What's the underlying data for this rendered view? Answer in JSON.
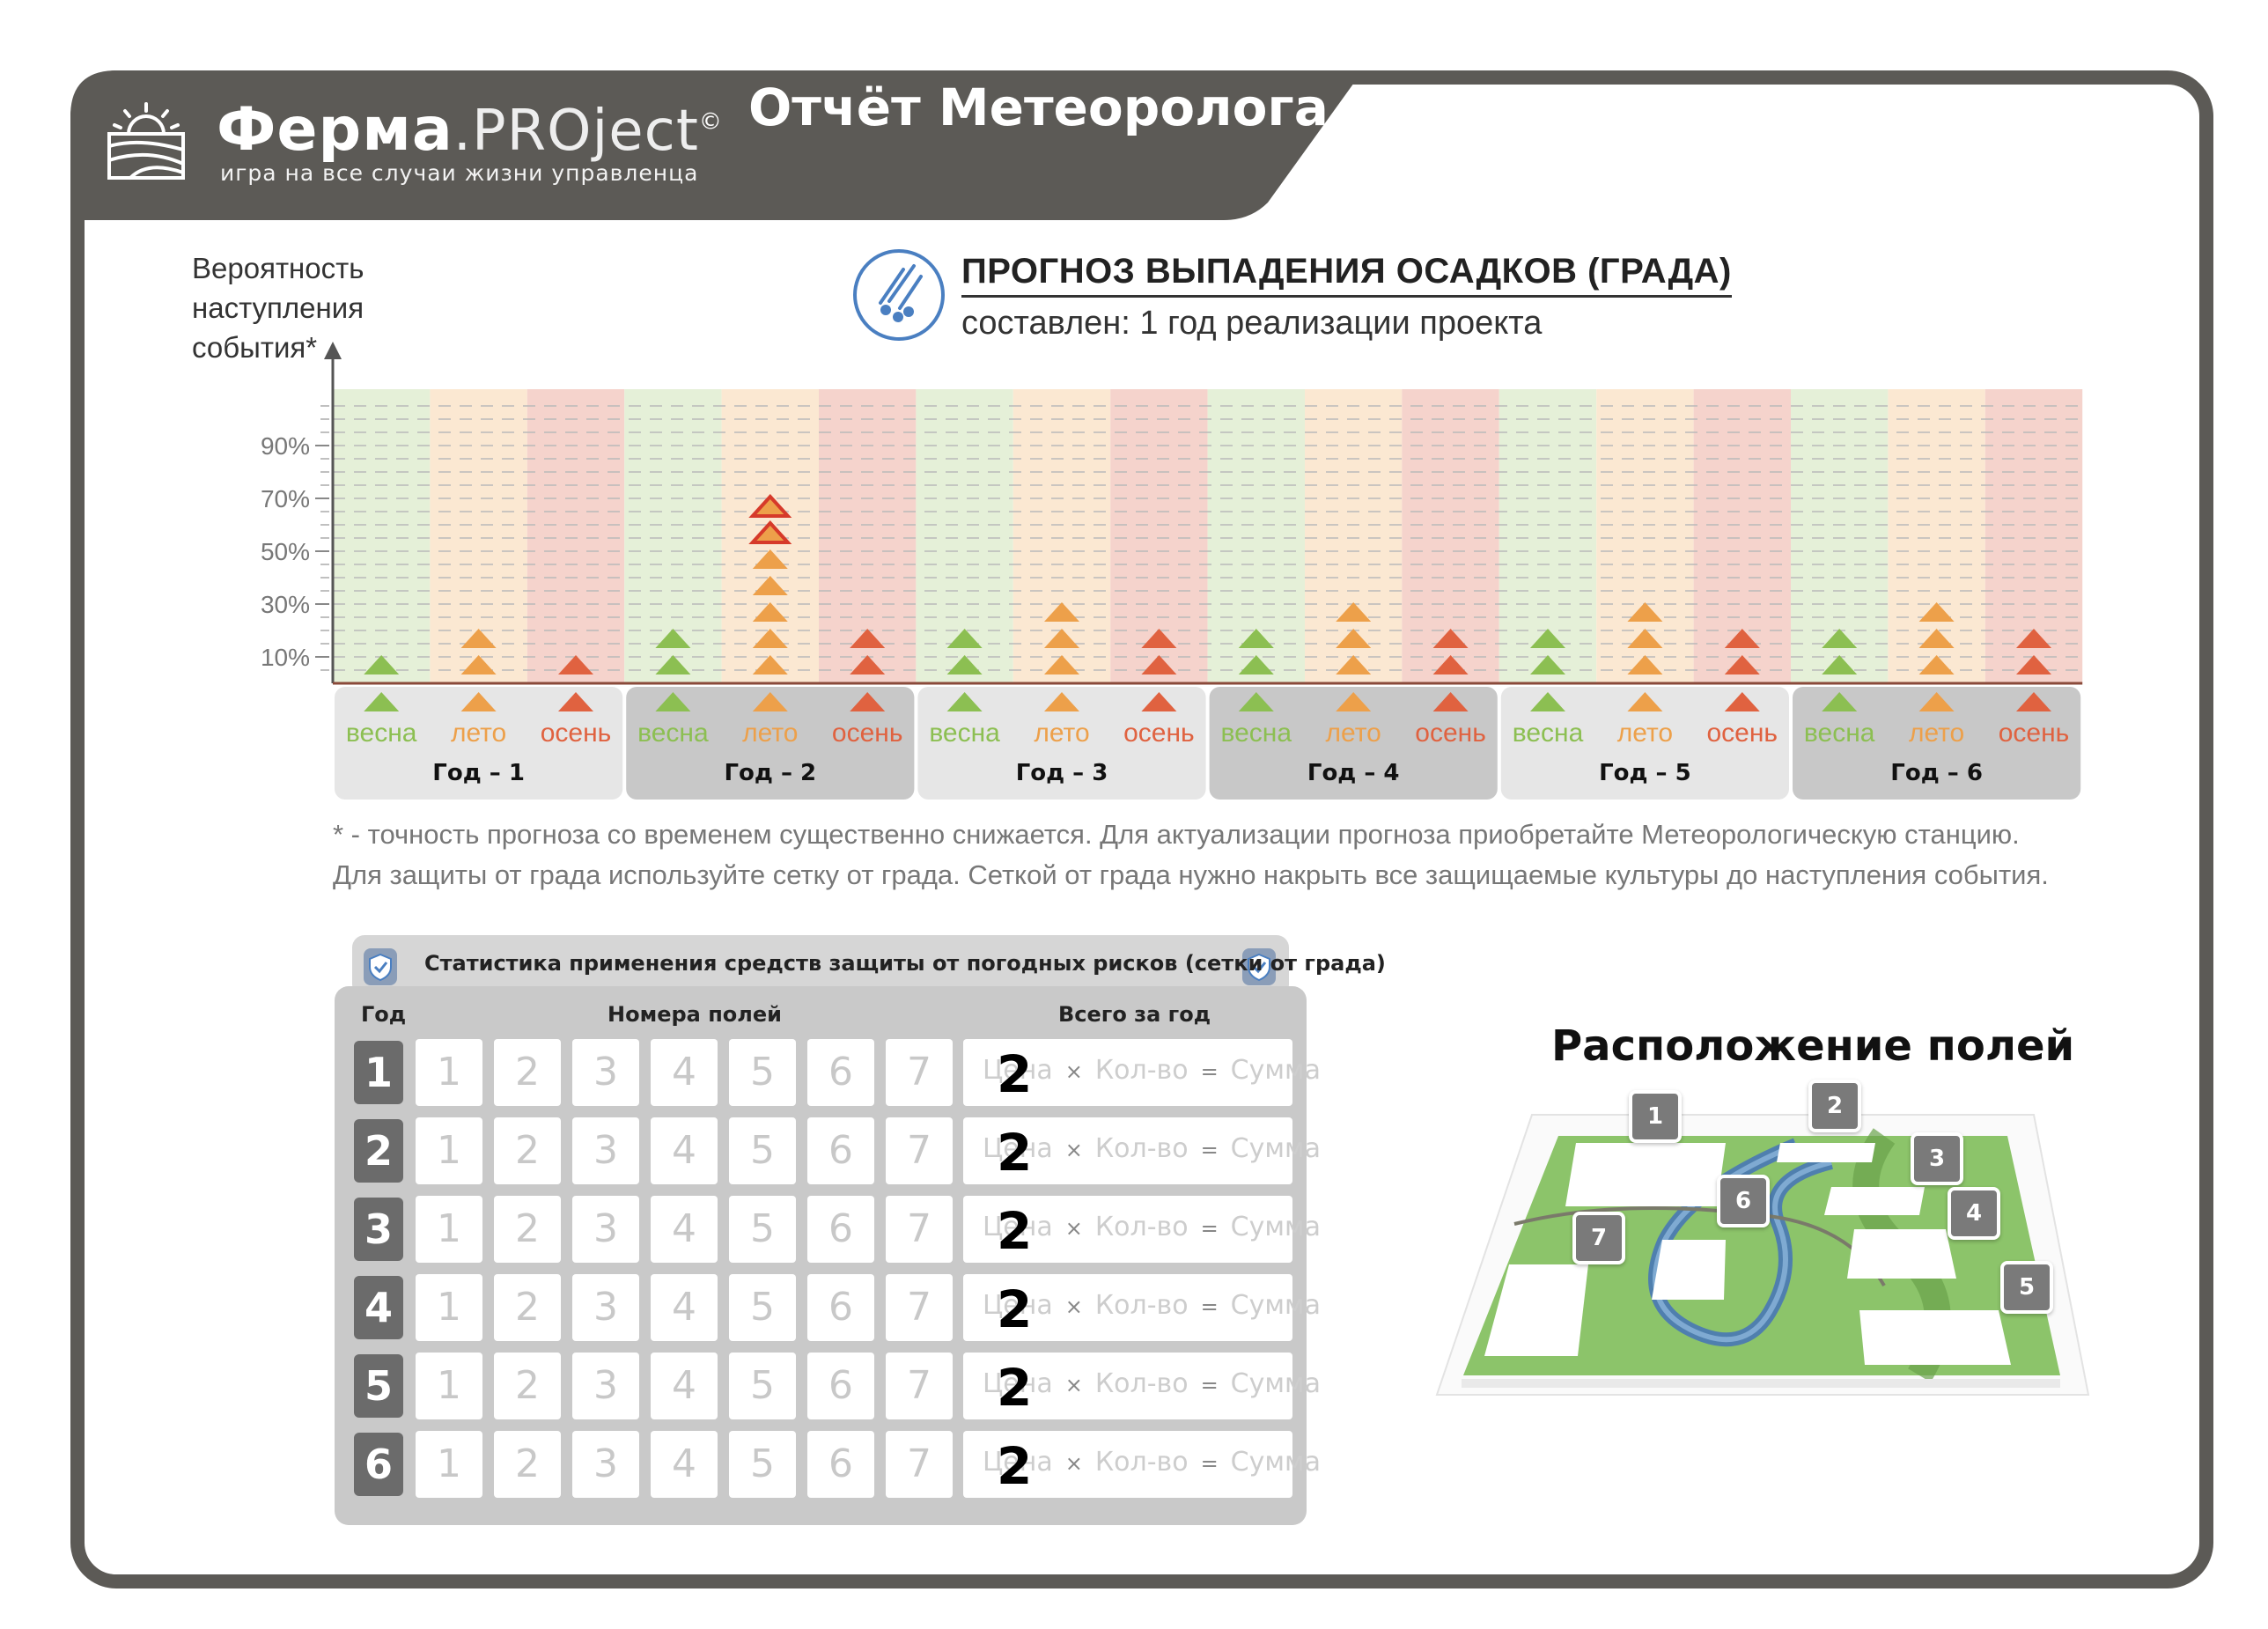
{
  "header": {
    "brand": "Ферма",
    "brand_suffix": ".PROject",
    "brand_mark": "©",
    "tagline": "игра на все случаи жизни управленца",
    "report_title": "Отчёт Метеоролога",
    "colors": {
      "band": "#5c5a56",
      "frame": "#5c5a56"
    }
  },
  "chart_intro": {
    "y_label_lines": [
      "Вероятность",
      "наступления",
      "события*"
    ],
    "title": "ПРОГНОЗ ВЫПАДЕНИЯ ОСАДКОВ (ГРАДА)",
    "subtitle": "составлен: 1 год реализации проекта",
    "icon": "hail-icon"
  },
  "chart_data": {
    "type": "bar",
    "title": "ПРОГНОЗ ВЫПАДЕНИЯ ОСАДКОВ (ГРАДА)",
    "subtitle": "составлен: 1 год реализации проекта",
    "ylabel": "Вероятность наступления события*",
    "yticks": [
      "10%",
      "30%",
      "50%",
      "70%",
      "90%"
    ],
    "ylim": [
      0,
      110
    ],
    "unit_per_marker": 10,
    "season_colors": {
      "весна": "#8cbf52",
      "лето": "#eda04a",
      "осень": "#e06240"
    },
    "band_colors": {
      "весна": "#e5f0d8",
      "лето": "#fbe8d2",
      "осень": "#f5d3cc"
    },
    "categories": [
      {
        "year": "Год – 1",
        "season": "весна",
        "value": 10
      },
      {
        "year": "Год – 1",
        "season": "лето",
        "value": 20
      },
      {
        "year": "Год – 1",
        "season": "осень",
        "value": 10
      },
      {
        "year": "Год – 2",
        "season": "весна",
        "value": 20
      },
      {
        "year": "Год – 2",
        "season": "лето",
        "value": 70,
        "highlighted_top": 2
      },
      {
        "year": "Год – 2",
        "season": "осень",
        "value": 20
      },
      {
        "year": "Год – 3",
        "season": "весна",
        "value": 20
      },
      {
        "year": "Год – 3",
        "season": "лето",
        "value": 30
      },
      {
        "year": "Год – 3",
        "season": "осень",
        "value": 20
      },
      {
        "year": "Год – 4",
        "season": "весна",
        "value": 20
      },
      {
        "year": "Год – 4",
        "season": "лето",
        "value": 30
      },
      {
        "year": "Год – 4",
        "season": "осень",
        "value": 20
      },
      {
        "year": "Год – 5",
        "season": "весна",
        "value": 20
      },
      {
        "year": "Год – 5",
        "season": "лето",
        "value": 30
      },
      {
        "year": "Год – 5",
        "season": "осень",
        "value": 20
      },
      {
        "year": "Год – 6",
        "season": "весна",
        "value": 20
      },
      {
        "year": "Год – 6",
        "season": "лето",
        "value": 30
      },
      {
        "year": "Год – 6",
        "season": "осень",
        "value": 20
      }
    ],
    "years": [
      "Год – 1",
      "Год – 2",
      "Год – 3",
      "Год – 4",
      "Год – 5",
      "Год – 6"
    ],
    "seasons": [
      "весна",
      "лето",
      "осень"
    ],
    "grid": "dashed"
  },
  "footnotes": [
    "* - точность прогноза со временем существенно снижается. Для актуализации прогноза приобретайте Метеорологическую станцию.",
    "Для защиты от града используйте сетку от града. Сеткой от града нужно накрыть все защищаемые культуры до наступления события."
  ],
  "stats": {
    "title": "Статистика применения средств защиты от погодных рисков (сетки от града)",
    "icon": "shield-icon",
    "col_year": "Год",
    "col_fields": "Номера полей",
    "col_total": "Всего за год",
    "field_numbers": [
      "1",
      "2",
      "3",
      "4",
      "5",
      "6",
      "7"
    ],
    "formula": {
      "price": "Цена",
      "times": "×",
      "qty": "Кол-во",
      "eq": "=",
      "sum": "Сумма"
    },
    "rows": [
      {
        "year": "1",
        "handwritten": "2"
      },
      {
        "year": "2",
        "handwritten": "2"
      },
      {
        "year": "3",
        "handwritten": "2"
      },
      {
        "year": "4",
        "handwritten": "2"
      },
      {
        "year": "5",
        "handwritten": "2"
      },
      {
        "year": "6",
        "handwritten": "2"
      }
    ]
  },
  "map": {
    "title": "Расположение полей",
    "fields": [
      "1",
      "2",
      "3",
      "4",
      "5",
      "6",
      "7"
    ]
  }
}
